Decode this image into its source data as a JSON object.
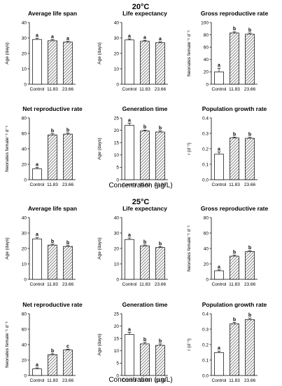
{
  "sections": [
    {
      "heading": "20°C",
      "xlabel": "Concentration (µg/L)"
    },
    {
      "heading": "25°C",
      "xlabel": "Concentration (µg/L)"
    }
  ],
  "chart_data": [
    {
      "section": 0,
      "type": "bar",
      "title": "Average life span",
      "ylabel": "Age (days)",
      "categories": [
        "Control",
        "11.83",
        "23.66"
      ],
      "values": [
        29.0,
        28.2,
        27.3
      ],
      "errors": [
        0.8,
        0.6,
        0.5
      ],
      "letters": [
        "a",
        "a",
        "a"
      ],
      "ylim": [
        0,
        40
      ],
      "yticks": [
        "0",
        "10",
        "20",
        "30",
        "40"
      ]
    },
    {
      "section": 0,
      "type": "bar",
      "title": "Life expectancy",
      "ylabel": "Age (days)",
      "categories": [
        "Control",
        "11.83",
        "23.66"
      ],
      "values": [
        28.7,
        27.8,
        26.9
      ],
      "errors": [
        0.7,
        0.6,
        0.5
      ],
      "letters": [
        "a",
        "a",
        "a"
      ],
      "ylim": [
        0,
        40
      ],
      "yticks": [
        "0",
        "10",
        "20",
        "30",
        "40"
      ]
    },
    {
      "section": 0,
      "type": "bar",
      "title": "Gross reproductive rate",
      "ylabel": "Neonates female⁻¹ d⁻¹",
      "categories": [
        "Control",
        "11.83",
        "23.66"
      ],
      "values": [
        20,
        83,
        81
      ],
      "errors": [
        6,
        2,
        2
      ],
      "letters": [
        "a",
        "b",
        "b"
      ],
      "ylim": [
        0,
        100
      ],
      "yticks": [
        "0",
        "20",
        "40",
        "60",
        "80",
        "100"
      ]
    },
    {
      "section": 0,
      "type": "bar",
      "title": "Net reproductive rate",
      "ylabel": "Neonates female⁻¹ d⁻¹",
      "categories": [
        "Control",
        "11.83",
        "23.66"
      ],
      "values": [
        14,
        58,
        59
      ],
      "errors": [
        2,
        1.5,
        1.5
      ],
      "letters": [
        "a",
        "b",
        "b"
      ],
      "ylim": [
        0,
        80
      ],
      "yticks": [
        "0",
        "20",
        "40",
        "60",
        "80"
      ]
    },
    {
      "section": 0,
      "type": "bar",
      "title": "Generation time",
      "ylabel": "Age (days)",
      "categories": [
        "Control",
        "11.83",
        "23.66"
      ],
      "values": [
        22.0,
        19.7,
        19.3
      ],
      "errors": [
        0.9,
        0.4,
        0.4
      ],
      "letters": [
        "a",
        "b",
        "b"
      ],
      "ylim": [
        0,
        25
      ],
      "yticks": [
        "0",
        "5",
        "10",
        "15",
        "20",
        "25"
      ]
    },
    {
      "section": 0,
      "type": "bar",
      "title": "Population growth rate",
      "ylabel": "r (d⁻¹)",
      "categories": [
        "Control",
        "11.83",
        "23.66"
      ],
      "values": [
        0.165,
        0.27,
        0.268
      ],
      "errors": [
        0.015,
        0.006,
        0.006
      ],
      "letters": [
        "a",
        "b",
        "b"
      ],
      "ylim": [
        0,
        0.4
      ],
      "yticks": [
        "0.0",
        "0.1",
        "0.2",
        "0.3",
        "0.4"
      ]
    },
    {
      "section": 1,
      "type": "bar",
      "title": "Average life span",
      "ylabel": "Age (days)",
      "categories": [
        "Control",
        "11.83",
        "23.66"
      ],
      "values": [
        26.2,
        22.2,
        21.3
      ],
      "errors": [
        1.0,
        0.6,
        0.6
      ],
      "letters": [
        "a",
        "b",
        "b"
      ],
      "ylim": [
        0,
        40
      ],
      "yticks": [
        "0",
        "10",
        "20",
        "30",
        "40"
      ]
    },
    {
      "section": 1,
      "type": "bar",
      "title": "Life expectancy",
      "ylabel": "Age (days)",
      "categories": [
        "Control",
        "11.83",
        "23.66"
      ],
      "values": [
        25.8,
        21.7,
        20.6
      ],
      "errors": [
        1.0,
        0.6,
        0.6
      ],
      "letters": [
        "a",
        "b",
        "b"
      ],
      "ylim": [
        0,
        40
      ],
      "yticks": [
        "0",
        "10",
        "20",
        "30",
        "40"
      ]
    },
    {
      "section": 1,
      "type": "bar",
      "title": "Gross reproductive rate",
      "ylabel": "Neonates female⁻¹ d⁻¹",
      "categories": [
        "Control",
        "11.83",
        "23.66"
      ],
      "values": [
        11,
        30,
        36
      ],
      "errors": [
        1.5,
        1.2,
        1.2
      ],
      "letters": [
        "a",
        "b",
        "b"
      ],
      "ylim": [
        0,
        80
      ],
      "yticks": [
        "0",
        "20",
        "40",
        "60",
        "80"
      ]
    },
    {
      "section": 1,
      "type": "bar",
      "title": "Net reproductive rate",
      "ylabel": "Neonates female⁻¹ d⁻¹",
      "categories": [
        "Control",
        "11.83",
        "23.66"
      ],
      "values": [
        8.5,
        27,
        33
      ],
      "errors": [
        1.5,
        1.2,
        1.2
      ],
      "letters": [
        "a",
        "b",
        "c"
      ],
      "ylim": [
        0,
        80
      ],
      "yticks": [
        "0",
        "20",
        "40",
        "60",
        "80"
      ]
    },
    {
      "section": 1,
      "type": "bar",
      "title": "Generation time",
      "ylabel": "Age (days)",
      "categories": [
        "Control",
        "11.83",
        "23.66"
      ],
      "values": [
        16.6,
        12.8,
        12.2
      ],
      "errors": [
        0.9,
        0.6,
        0.6
      ],
      "letters": [
        "a",
        "b",
        "b"
      ],
      "ylim": [
        0,
        25
      ],
      "yticks": [
        "0",
        "5",
        "10",
        "15",
        "20",
        "25"
      ]
    },
    {
      "section": 1,
      "type": "bar",
      "title": "Population growth rate",
      "ylabel": "r (d⁻¹)",
      "categories": [
        "Control",
        "11.83",
        "23.66"
      ],
      "values": [
        0.148,
        0.335,
        0.362
      ],
      "errors": [
        0.01,
        0.008,
        0.01
      ],
      "letters": [
        "a",
        "b",
        "b"
      ],
      "ylim": [
        0,
        0.4
      ],
      "yticks": [
        "0.0",
        "0.1",
        "0.2",
        "0.3",
        "0.4"
      ]
    }
  ]
}
